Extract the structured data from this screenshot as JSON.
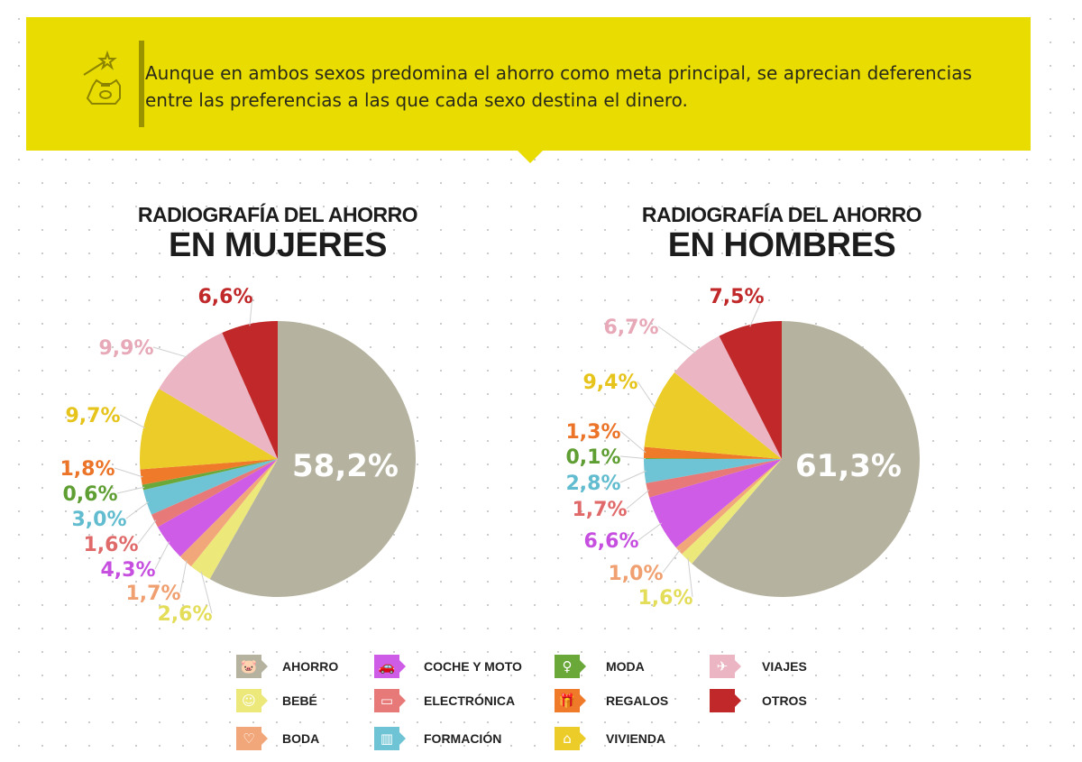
{
  "header": {
    "text_line1": "Aunque en ambos sexos predomina el ahorro como meta principal, se aprecian deferencias",
    "text_line2": "entre las preferencias a las que cada sexo destina el dinero.",
    "icon": "piggy-bank-magic-wand-icon",
    "color": "#e9dc00"
  },
  "categories": [
    {
      "name": "AHORRO",
      "color": "#b5b3a0",
      "icon": "piggy-bank-icon"
    },
    {
      "name": "BEBÉ",
      "color": "#ece87a",
      "icon": "baby-icon"
    },
    {
      "name": "BODA",
      "color": "#f2a77a",
      "icon": "hearts-icon"
    },
    {
      "name": "COCHE Y MOTO",
      "color": "#cf5ce6",
      "icon": "car-icon"
    },
    {
      "name": "ELECTRÓNICA",
      "color": "#e77a78",
      "icon": "laptop-icon"
    },
    {
      "name": "FORMACIÓN",
      "color": "#6ec4d4",
      "icon": "book-icon"
    },
    {
      "name": "MODA",
      "color": "#6aa83a",
      "icon": "dress-icon"
    },
    {
      "name": "REGALOS",
      "color": "#ef7a2a",
      "icon": "gift-icon"
    },
    {
      "name": "VIVIENDA",
      "color": "#eccc28",
      "icon": "house-icon"
    },
    {
      "name": "VIAJES",
      "color": "#ebb5c3",
      "icon": "plane-icon"
    },
    {
      "name": "OTROS",
      "color": "#c0282a",
      "icon": "square-icon"
    }
  ],
  "chart_data": [
    {
      "type": "pie",
      "title_line1": "RADIOGRAFÍA DEL AHORRO",
      "title_line2": "EN MUJERES",
      "categories": [
        "AHORRO",
        "BEBÉ",
        "BODA",
        "COCHE Y MOTO",
        "ELECTRÓNICA",
        "FORMACIÓN",
        "MODA",
        "REGALOS",
        "VIVIENDA",
        "VIAJES",
        "OTROS"
      ],
      "values": [
        58.2,
        2.6,
        1.7,
        4.3,
        1.6,
        3.0,
        0.6,
        1.8,
        9.7,
        9.9,
        6.6
      ],
      "labels": [
        "58,2%",
        "2,6%",
        "1,7%",
        "4,3%",
        "1,6%",
        "3,0%",
        "0,6%",
        "1,8%",
        "9,7%",
        "9,9%",
        "6,6%"
      ]
    },
    {
      "type": "pie",
      "title_line1": "RADIOGRAFÍA DEL AHORRO",
      "title_line2": "EN HOMBRES",
      "categories": [
        "AHORRO",
        "BEBÉ",
        "BODA",
        "COCHE Y MOTO",
        "ELECTRÓNICA",
        "FORMACIÓN",
        "MODA",
        "REGALOS",
        "VIVIENDA",
        "VIAJES",
        "OTROS"
      ],
      "values": [
        61.3,
        1.6,
        1.0,
        6.6,
        1.7,
        2.8,
        0.1,
        1.3,
        9.4,
        6.7,
        7.5
      ],
      "labels": [
        "61,3%",
        "1,6%",
        "1,0%",
        "6,6%",
        "1,7%",
        "2,8%",
        "0,1%",
        "1,3%",
        "9,4%",
        "6,7%",
        "7,5%"
      ]
    }
  ]
}
